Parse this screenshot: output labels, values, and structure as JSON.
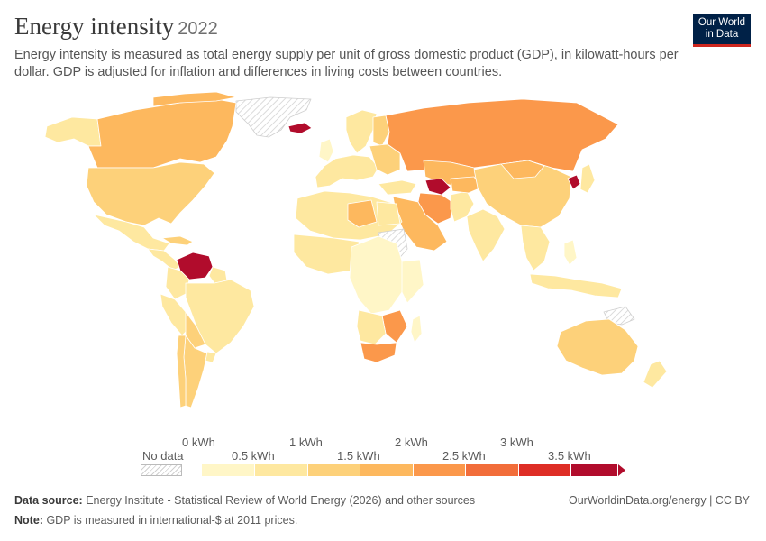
{
  "header": {
    "title": "Energy intensity",
    "year": "2022",
    "subtitle": "Energy intensity is measured as total energy supply per unit of gross domestic product (GDP), in kilowatt-hours per dollar. GDP is adjusted for inflation and differences in living costs between countries.",
    "logo_line1": "Our World",
    "logo_line2": "in Data"
  },
  "legend": {
    "no_data_label": "No data",
    "labels": [
      "0 kWh",
      "0.5 kWh",
      "1 kWh",
      "1.5 kWh",
      "2 kWh",
      "2.5 kWh",
      "3 kWh",
      "3.5 kWh"
    ],
    "colors": [
      "#fff6c7",
      "#fee8a0",
      "#fdd17a",
      "#fdb85e",
      "#fb984b",
      "#f26d3a",
      "#de2d26",
      "#b10c2c"
    ]
  },
  "footer": {
    "source_label": "Data source:",
    "source_text": "Energy Institute - Statistical Review of World Energy (2026) and other sources",
    "note_label": "Note:",
    "note_text": "GDP is measured in international-$ at 2011 prices.",
    "link_text": "OurWorldinData.org/energy | CC BY"
  },
  "colors": {
    "very_low": "#fff6c7",
    "low": "#fee8a0",
    "medium": "#fdd17a",
    "medium_high": "#fdb85e",
    "high": "#fb984b",
    "very_high": "#f26d3a",
    "extreme": "#b10c2c",
    "no_data_hatch": "#d0d0d0"
  }
}
